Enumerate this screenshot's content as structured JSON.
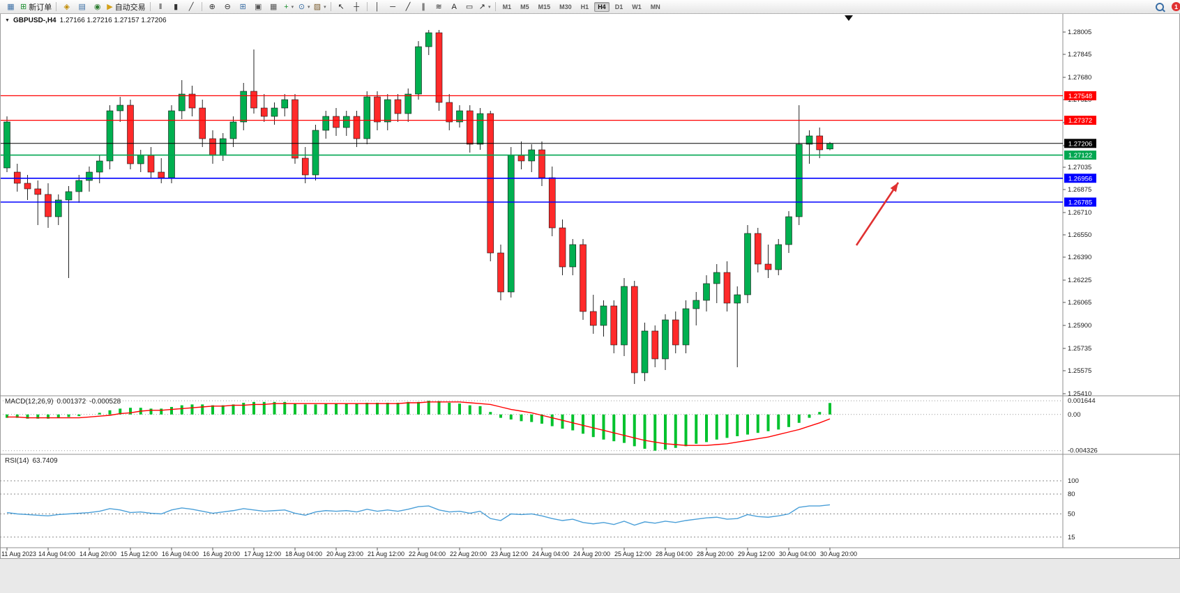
{
  "toolbar": {
    "items": [
      {
        "type": "icon",
        "name": "new-chart-icon",
        "glyph": "▦",
        "color": "#3a6ea5"
      },
      {
        "type": "button",
        "name": "new-order-button",
        "glyph": "⊞",
        "color": "#1b8f2e",
        "label": "新订单"
      },
      {
        "type": "sep"
      },
      {
        "type": "icon",
        "name": "navigator-icon",
        "glyph": "◈",
        "color": "#c08a00"
      },
      {
        "type": "icon",
        "name": "market-watch-icon",
        "glyph": "▤",
        "color": "#3a6ea5"
      },
      {
        "type": "icon",
        "name": "history-center-icon",
        "glyph": "◉",
        "color": "#2e7d32"
      },
      {
        "type": "button",
        "name": "auto-trading-button",
        "glyph": "▶",
        "color": "#d4a017",
        "label": "自动交易"
      },
      {
        "type": "sep"
      },
      {
        "type": "icon",
        "name": "bar-chart-icon",
        "glyph": "‖",
        "color": "#333333"
      },
      {
        "type": "icon",
        "name": "candlestick-chart-icon",
        "glyph": "▮",
        "color": "#333333"
      },
      {
        "type": "icon",
        "name": "line-chart-icon",
        "glyph": "╱",
        "color": "#333333"
      },
      {
        "type": "sep"
      },
      {
        "type": "icon",
        "name": "zoom-in-icon",
        "glyph": "⊕",
        "color": "#333333"
      },
      {
        "type": "icon",
        "name": "zoom-out-icon",
        "glyph": "⊖",
        "color": "#333333"
      },
      {
        "type": "icon",
        "name": "tile-windows-icon",
        "glyph": "⊞",
        "color": "#3a6ea5"
      },
      {
        "type": "icon",
        "name": "cascade-windows-icon",
        "glyph": "▣",
        "color": "#555555"
      },
      {
        "type": "icon",
        "name": "arrange-windows-icon",
        "glyph": "▦",
        "color": "#555555"
      },
      {
        "type": "icon-dd",
        "name": "indicators-icon",
        "glyph": "+",
        "color": "#1b8f2e"
      },
      {
        "type": "icon-dd",
        "name": "periods-icon",
        "glyph": "⊙",
        "color": "#3a6ea5"
      },
      {
        "type": "icon-dd",
        "name": "templates-icon",
        "glyph": "▨",
        "color": "#7a5c2e"
      },
      {
        "type": "sep"
      },
      {
        "type": "icon",
        "name": "cursor-icon",
        "glyph": "↖",
        "color": "#222222"
      },
      {
        "type": "icon",
        "name": "crosshair-icon",
        "glyph": "┼",
        "color": "#222222"
      },
      {
        "type": "sep"
      },
      {
        "type": "icon",
        "name": "vertical-line-icon",
        "glyph": "│",
        "color": "#222222"
      },
      {
        "type": "icon",
        "name": "horizontal-line-icon",
        "glyph": "─",
        "color": "#222222"
      },
      {
        "type": "icon",
        "name": "trendline-icon",
        "glyph": "╱",
        "color": "#222222"
      },
      {
        "type": "icon",
        "name": "channel-icon",
        "glyph": "∥",
        "color": "#222222"
      },
      {
        "type": "icon",
        "name": "fibonacci-icon",
        "glyph": "≋",
        "color": "#222222"
      },
      {
        "type": "icon",
        "name": "text-icon",
        "glyph": "A",
        "color": "#222222"
      },
      {
        "type": "icon",
        "name": "label-icon",
        "glyph": "▭",
        "color": "#222222"
      },
      {
        "type": "icon-dd",
        "name": "arrows-icon",
        "glyph": "↗",
        "color": "#222222"
      },
      {
        "type": "sep"
      }
    ],
    "timeframes": [
      "M1",
      "M5",
      "M15",
      "M30",
      "H1",
      "H4",
      "D1",
      "W1",
      "MN"
    ],
    "active_timeframe": "H4",
    "notification_count": "1"
  },
  "chart": {
    "symbol_label": "GBPUSD-,H4",
    "ohlc_values": "1.27166 1.27216 1.27157 1.27206"
  },
  "chart_data": {
    "type": "candlestick",
    "symbol": "GBPUSD-",
    "timeframe": "H4",
    "colors": {
      "bull": "#00b050",
      "bear": "#ff2a2a",
      "wick": "#222222",
      "macd_hist": "#00c22d",
      "macd_signal": "#ff0000",
      "rsi": "#4a9fd8",
      "level_red": "#ff0000",
      "level_blue": "#0000ff",
      "level_green": "#00a651",
      "current": "#000000",
      "arrow": "#e03131"
    },
    "x_labels": [
      "11 Aug 2023",
      "14 Aug 04:00",
      "14 Aug 20:00",
      "15 Aug 12:00",
      "16 Aug 04:00",
      "16 Aug 20:00",
      "17 Aug 12:00",
      "18 Aug 04:00",
      "20 Aug 23:00",
      "21 Aug 12:00",
      "22 Aug 04:00",
      "22 Aug 20:00",
      "23 Aug 12:00",
      "24 Aug 04:00",
      "24 Aug 20:00",
      "25 Aug 12:00",
      "28 Aug 04:00",
      "28 Aug 20:00",
      "29 Aug 12:00",
      "30 Aug 04:00",
      "30 Aug 20:00"
    ],
    "label_every_n_candles": 4,
    "price_axis": {
      "min": 1.25395,
      "max": 1.28115,
      "ticks": [
        "1.28005",
        "1.27845",
        "1.27680",
        "1.27520",
        "1.27355",
        "1.27190",
        "1.27035",
        "1.26875",
        "1.26710",
        "1.26550",
        "1.26390",
        "1.26225",
        "1.26065",
        "1.25900",
        "1.25735",
        "1.25575",
        "1.25410"
      ]
    },
    "candles": [
      [
        1.2703,
        1.274,
        1.27,
        1.2736
      ],
      [
        1.27,
        1.2706,
        1.2686,
        1.2692
      ],
      [
        1.2692,
        1.2698,
        1.268,
        1.2688
      ],
      [
        1.2688,
        1.2694,
        1.2662,
        1.2684
      ],
      [
        1.2684,
        1.2692,
        1.266,
        1.2668
      ],
      [
        1.2668,
        1.2684,
        1.2662,
        1.268
      ],
      [
        1.268,
        1.269,
        1.2624,
        1.2686
      ],
      [
        1.2686,
        1.2698,
        1.2678,
        1.2694
      ],
      [
        1.2694,
        1.2704,
        1.2686,
        1.27
      ],
      [
        1.27,
        1.2712,
        1.2692,
        1.2708
      ],
      [
        1.2708,
        1.2748,
        1.2702,
        1.2744
      ],
      [
        1.2744,
        1.2754,
        1.2736,
        1.2748
      ],
      [
        1.2748,
        1.2752,
        1.2702,
        1.2706
      ],
      [
        1.2706,
        1.2716,
        1.27,
        1.2712
      ],
      [
        1.2712,
        1.2718,
        1.2696,
        1.27
      ],
      [
        1.27,
        1.271,
        1.2692,
        1.2696
      ],
      [
        1.2696,
        1.2748,
        1.2692,
        1.2744
      ],
      [
        1.2744,
        1.2766,
        1.2738,
        1.2756
      ],
      [
        1.2756,
        1.2762,
        1.274,
        1.2746
      ],
      [
        1.2746,
        1.2752,
        1.2718,
        1.2724
      ],
      [
        1.2724,
        1.273,
        1.2706,
        1.2712
      ],
      [
        1.2712,
        1.2728,
        1.2708,
        1.2724
      ],
      [
        1.2724,
        1.274,
        1.2718,
        1.2736
      ],
      [
        1.2736,
        1.2764,
        1.273,
        1.2758
      ],
      [
        1.2758,
        1.2788,
        1.2742,
        1.2746
      ],
      [
        1.2746,
        1.2756,
        1.2736,
        1.274
      ],
      [
        1.274,
        1.275,
        1.2734,
        1.2746
      ],
      [
        1.2746,
        1.2756,
        1.274,
        1.2752
      ],
      [
        1.2752,
        1.2756,
        1.2706,
        1.271
      ],
      [
        1.271,
        1.2718,
        1.2692,
        1.2698
      ],
      [
        1.2698,
        1.2734,
        1.2694,
        1.273
      ],
      [
        1.273,
        1.2744,
        1.2724,
        1.274
      ],
      [
        1.274,
        1.2746,
        1.2726,
        1.2732
      ],
      [
        1.2732,
        1.2744,
        1.2726,
        1.274
      ],
      [
        1.274,
        1.2744,
        1.2718,
        1.2724
      ],
      [
        1.2724,
        1.2758,
        1.272,
        1.2754
      ],
      [
        1.2754,
        1.2758,
        1.273,
        1.2736
      ],
      [
        1.2736,
        1.2756,
        1.273,
        1.2752
      ],
      [
        1.2752,
        1.2756,
        1.2736,
        1.2742
      ],
      [
        1.2742,
        1.276,
        1.2736,
        1.2756
      ],
      [
        1.2756,
        1.2794,
        1.2752,
        1.279
      ],
      [
        1.279,
        1.2802,
        1.2784,
        1.28
      ],
      [
        1.28,
        1.2802,
        1.2744,
        1.275
      ],
      [
        1.275,
        1.2756,
        1.273,
        1.2736
      ],
      [
        1.2736,
        1.2748,
        1.2732,
        1.2744
      ],
      [
        1.2744,
        1.2748,
        1.2714,
        1.272
      ],
      [
        1.272,
        1.2746,
        1.2716,
        1.2742
      ],
      [
        1.2742,
        1.2744,
        1.2636,
        1.2642
      ],
      [
        1.2642,
        1.2648,
        1.2608,
        1.2614
      ],
      [
        1.2614,
        1.2718,
        1.261,
        1.2712
      ],
      [
        1.2712,
        1.2722,
        1.2702,
        1.2708
      ],
      [
        1.2708,
        1.272,
        1.27,
        1.2716
      ],
      [
        1.2716,
        1.2722,
        1.269,
        1.2696
      ],
      [
        1.2696,
        1.2704,
        1.2654,
        1.266
      ],
      [
        1.266,
        1.2666,
        1.2626,
        1.2632
      ],
      [
        1.2632,
        1.2652,
        1.2626,
        1.2648
      ],
      [
        1.2648,
        1.2652,
        1.2594,
        1.26
      ],
      [
        1.26,
        1.2612,
        1.2584,
        1.259
      ],
      [
        1.259,
        1.2608,
        1.2582,
        1.2604
      ],
      [
        1.2604,
        1.2608,
        1.257,
        1.2576
      ],
      [
        1.2576,
        1.2624,
        1.2568,
        1.2618
      ],
      [
        1.2618,
        1.2622,
        1.2548,
        1.2556
      ],
      [
        1.2556,
        1.2592,
        1.255,
        1.2586
      ],
      [
        1.2586,
        1.259,
        1.256,
        1.2566
      ],
      [
        1.2566,
        1.2598,
        1.2558,
        1.2594
      ],
      [
        1.2594,
        1.26,
        1.257,
        1.2576
      ],
      [
        1.2576,
        1.2608,
        1.257,
        1.2602
      ],
      [
        1.2602,
        1.2614,
        1.259,
        1.2608
      ],
      [
        1.2608,
        1.2626,
        1.26,
        1.262
      ],
      [
        1.262,
        1.2634,
        1.2606,
        1.2628
      ],
      [
        1.2628,
        1.2636,
        1.26,
        1.2606
      ],
      [
        1.2606,
        1.2618,
        1.256,
        1.2612
      ],
      [
        1.2612,
        1.2662,
        1.2606,
        1.2656
      ],
      [
        1.2656,
        1.266,
        1.2628,
        1.2634
      ],
      [
        1.2634,
        1.2648,
        1.2624,
        1.263
      ],
      [
        1.263,
        1.2652,
        1.2626,
        1.2648
      ],
      [
        1.2648,
        1.2672,
        1.2642,
        1.2668
      ],
      [
        1.2668,
        1.2748,
        1.2662,
        1.272
      ],
      [
        1.272,
        1.273,
        1.2706,
        1.2726
      ],
      [
        1.2726,
        1.2732,
        1.271,
        1.2716
      ],
      [
        1.27166,
        1.27216,
        1.27157,
        1.27206
      ]
    ],
    "levels": [
      {
        "price": 1.27548,
        "label": "1.27548",
        "color": "#ff0000",
        "width": 1.2,
        "name": "resistance-line-1"
      },
      {
        "price": 1.27372,
        "label": "1.27372",
        "color": "#ff0000",
        "width": 1.2,
        "name": "resistance-line-2"
      },
      {
        "price": 1.27206,
        "label": "1.27206",
        "color": "#000000",
        "width": 1.0,
        "name": "current-price-line"
      },
      {
        "price": 1.27122,
        "label": "1.27122",
        "color": "#00a651",
        "width": 1.6,
        "name": "support-line-green"
      },
      {
        "price": 1.26956,
        "label": "1.26956",
        "color": "#0000ff",
        "width": 1.6,
        "name": "support-line-blue-1"
      },
      {
        "price": 1.26785,
        "label": "1.26785",
        "color": "#0000ff",
        "width": 1.6,
        "name": "support-line-blue-2"
      }
    ],
    "macd": {
      "label": "MACD(12,26,9)",
      "value_main": "0.001372",
      "value_signal": "-0.000528",
      "axis": [
        "0.001644",
        "0.00",
        "-0.004326"
      ],
      "histogram": [
        -0.0004,
        -0.0004,
        -0.0005,
        -0.0005,
        -0.0005,
        -0.0004,
        -0.0003,
        -0.0002,
        0.0,
        0.0002,
        0.0005,
        0.0007,
        0.0008,
        0.0008,
        0.0007,
        0.0007,
        0.0009,
        0.0011,
        0.0012,
        0.0012,
        0.0011,
        0.0011,
        0.0012,
        0.0014,
        0.0015,
        0.0015,
        0.0015,
        0.0015,
        0.0013,
        0.0012,
        0.0012,
        0.0013,
        0.0013,
        0.0013,
        0.0013,
        0.0014,
        0.0014,
        0.0014,
        0.0014,
        0.0015,
        0.0015,
        0.001644,
        0.0016,
        0.0014,
        0.0013,
        0.0011,
        0.001,
        0.0003,
        -0.0004,
        -0.0006,
        -0.0008,
        -0.0009,
        -0.0011,
        -0.0014,
        -0.0017,
        -0.0019,
        -0.0023,
        -0.0027,
        -0.003,
        -0.0032,
        -0.0034,
        -0.0038,
        -0.0041,
        -0.004326,
        -0.0042,
        -0.004,
        -0.0038,
        -0.0035,
        -0.0033,
        -0.003,
        -0.0028,
        -0.0026,
        -0.0024,
        -0.0022,
        -0.002,
        -0.0018,
        -0.0015,
        -0.001,
        -0.0004,
        0.0003,
        0.001372
      ],
      "signal": [
        -0.0003,
        -0.0003,
        -0.0004,
        -0.0004,
        -0.0004,
        -0.0004,
        -0.0004,
        -0.0004,
        -0.0003,
        -0.0002,
        -0.0001,
        0.0001,
        0.0002,
        0.0004,
        0.0005,
        0.0005,
        0.0006,
        0.0007,
        0.0008,
        0.0009,
        0.001,
        0.001,
        0.0011,
        0.0011,
        0.0012,
        0.0012,
        0.0013,
        0.0013,
        0.0013,
        0.0013,
        0.0013,
        0.0013,
        0.0013,
        0.0013,
        0.0013,
        0.0013,
        0.0013,
        0.0013,
        0.0013,
        0.0014,
        0.0014,
        0.0015,
        0.0015,
        0.0015,
        0.0015,
        0.0014,
        0.0013,
        0.0012,
        0.0009,
        0.0006,
        0.0004,
        0.0002,
        -0.0001,
        -0.0004,
        -0.0007,
        -0.001,
        -0.0013,
        -0.0016,
        -0.0019,
        -0.0022,
        -0.0025,
        -0.0028,
        -0.0031,
        -0.0033,
        -0.0035,
        -0.0036,
        -0.0037,
        -0.0037,
        -0.0037,
        -0.0036,
        -0.0035,
        -0.0033,
        -0.0031,
        -0.0029,
        -0.0027,
        -0.0024,
        -0.0021,
        -0.0018,
        -0.0014,
        -0.001,
        -0.000528
      ]
    },
    "rsi": {
      "label": "RSI(14)",
      "value": "63.7409",
      "axis": [
        "100",
        "80",
        "50",
        "15"
      ],
      "series": [
        52,
        50,
        49,
        48,
        47,
        49,
        50,
        51,
        52,
        54,
        58,
        56,
        52,
        53,
        51,
        50,
        56,
        59,
        57,
        54,
        51,
        53,
        55,
        58,
        56,
        54,
        55,
        56,
        51,
        48,
        53,
        55,
        54,
        55,
        53,
        57,
        54,
        56,
        54,
        57,
        61,
        62,
        56,
        53,
        54,
        51,
        54,
        43,
        40,
        50,
        49,
        50,
        47,
        43,
        40,
        42,
        37,
        35,
        37,
        34,
        39,
        33,
        38,
        36,
        39,
        37,
        40,
        42,
        44,
        45,
        42,
        43,
        49,
        46,
        45,
        47,
        50,
        60,
        62,
        62,
        63.74
      ]
    },
    "arrow": {
      "from": [
        1228,
        352
      ],
      "to": [
        1288,
        262
      ]
    }
  }
}
